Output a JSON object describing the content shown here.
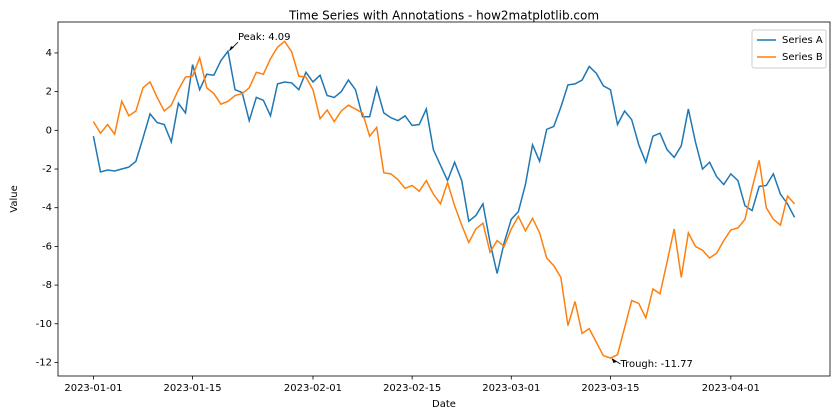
{
  "chart_data": {
    "type": "line",
    "title": "Time Series with Annotations - how2matplotlib.com",
    "x_label": "Date",
    "y_label": "Value",
    "x": [
      "2023-01-01",
      "2023-01-02",
      "2023-01-03",
      "2023-01-04",
      "2023-01-05",
      "2023-01-06",
      "2023-01-07",
      "2023-01-08",
      "2023-01-09",
      "2023-01-10",
      "2023-01-11",
      "2023-01-12",
      "2023-01-13",
      "2023-01-14",
      "2023-01-15",
      "2023-01-16",
      "2023-01-17",
      "2023-01-18",
      "2023-01-19",
      "2023-01-20",
      "2023-01-21",
      "2023-01-22",
      "2023-01-23",
      "2023-01-24",
      "2023-01-25",
      "2023-01-26",
      "2023-01-27",
      "2023-01-28",
      "2023-01-29",
      "2023-01-30",
      "2023-01-31",
      "2023-02-01",
      "2023-02-02",
      "2023-02-03",
      "2023-02-04",
      "2023-02-05",
      "2023-02-06",
      "2023-02-07",
      "2023-02-08",
      "2023-02-09",
      "2023-02-10",
      "2023-02-11",
      "2023-02-12",
      "2023-02-13",
      "2023-02-14",
      "2023-02-15",
      "2023-02-16",
      "2023-02-17",
      "2023-02-18",
      "2023-02-19",
      "2023-02-20",
      "2023-02-21",
      "2023-02-22",
      "2023-02-23",
      "2023-02-24",
      "2023-02-25",
      "2023-02-26",
      "2023-02-27",
      "2023-02-28",
      "2023-03-01",
      "2023-03-02",
      "2023-03-03",
      "2023-03-04",
      "2023-03-05",
      "2023-03-06",
      "2023-03-07",
      "2023-03-08",
      "2023-03-09",
      "2023-03-10",
      "2023-03-11",
      "2023-03-12",
      "2023-03-13",
      "2023-03-14",
      "2023-03-15",
      "2023-03-16",
      "2023-03-17",
      "2023-03-18",
      "2023-03-19",
      "2023-03-20",
      "2023-03-21",
      "2023-03-22",
      "2023-03-23",
      "2023-03-24",
      "2023-03-25",
      "2023-03-26",
      "2023-03-27",
      "2023-03-28",
      "2023-03-29",
      "2023-03-30",
      "2023-03-31",
      "2023-04-01",
      "2023-04-02",
      "2023-04-03",
      "2023-04-04",
      "2023-04-05",
      "2023-04-06",
      "2023-04-07",
      "2023-04-08",
      "2023-04-09",
      "2023-04-10"
    ],
    "series": [
      {
        "name": "Series A",
        "color": "#1f77b4",
        "values": [
          -0.3,
          -2.15,
          -2.05,
          -2.1,
          -2.0,
          -1.9,
          -1.6,
          -0.4,
          0.85,
          0.4,
          0.3,
          -0.6,
          1.4,
          0.9,
          3.4,
          2.1,
          2.9,
          2.85,
          3.6,
          4.09,
          2.1,
          1.95,
          0.5,
          1.7,
          1.55,
          0.75,
          2.4,
          2.5,
          2.45,
          2.1,
          3.0,
          2.5,
          2.85,
          1.8,
          1.7,
          2.0,
          2.6,
          2.1,
          0.7,
          0.7,
          2.2,
          0.9,
          0.65,
          0.5,
          0.75,
          0.25,
          0.3,
          1.1,
          -1.0,
          -1.8,
          -2.6,
          -1.65,
          -2.6,
          -4.7,
          -4.4,
          -3.8,
          -5.8,
          -7.4,
          -5.8,
          -4.6,
          -4.2,
          -2.8,
          -0.75,
          -1.6,
          0.05,
          0.2,
          1.2,
          2.35,
          2.4,
          2.6,
          3.3,
          2.95,
          2.3,
          2.1,
          0.3,
          1.0,
          0.55,
          -0.75,
          -1.65,
          -0.3,
          -0.15,
          -1.0,
          -1.4,
          -0.8,
          1.1,
          -0.6,
          -2.0,
          -1.65,
          -2.4,
          -2.8,
          -2.25,
          -2.6,
          -3.9,
          -4.15,
          -2.9,
          -2.85,
          -2.25,
          -3.3,
          -3.8,
          -4.5
        ]
      },
      {
        "name": "Series B",
        "color": "#ff7f0e",
        "values": [
          0.45,
          -0.15,
          0.3,
          -0.2,
          1.5,
          0.75,
          1.0,
          2.2,
          2.5,
          1.7,
          1.0,
          1.3,
          2.1,
          2.75,
          2.8,
          3.75,
          2.2,
          1.9,
          1.35,
          1.5,
          1.8,
          1.9,
          2.2,
          3.0,
          2.9,
          3.7,
          4.3,
          4.6,
          4.05,
          2.8,
          2.75,
          2.1,
          0.6,
          1.05,
          0.45,
          1.0,
          1.3,
          1.1,
          0.9,
          -0.3,
          0.15,
          -2.2,
          -2.25,
          -2.55,
          -3.0,
          -2.85,
          -3.15,
          -2.6,
          -3.3,
          -3.8,
          -2.7,
          -3.9,
          -4.9,
          -5.8,
          -5.1,
          -4.8,
          -6.3,
          -5.7,
          -6.0,
          -5.1,
          -4.45,
          -5.2,
          -4.55,
          -5.3,
          -6.6,
          -7.0,
          -7.6,
          -10.1,
          -8.85,
          -10.5,
          -10.25,
          -10.95,
          -11.65,
          -11.77,
          -11.6,
          -10.2,
          -8.8,
          -8.95,
          -9.7,
          -8.2,
          -8.45,
          -6.8,
          -5.1,
          -7.6,
          -5.3,
          -6.0,
          -6.2,
          -6.6,
          -6.35,
          -5.7,
          -5.15,
          -5.05,
          -4.6,
          -3.0,
          -1.55,
          -4.0,
          -4.6,
          -4.9,
          -3.4,
          -3.8
        ]
      }
    ],
    "annotations": [
      {
        "text": "Peak: 4.09",
        "x": "2023-01-20",
        "y": 4.09
      },
      {
        "text": "Trough: -11.77",
        "x": "2023-03-15",
        "y": -11.77
      }
    ],
    "xlim": [
      "2022-12-27",
      "2023-04-15"
    ],
    "xticks": [
      "2023-01-01",
      "2023-01-15",
      "2023-02-01",
      "2023-02-15",
      "2023-03-01",
      "2023-03-15",
      "2023-04-01"
    ],
    "ylim": [
      -12.7,
      5.6
    ],
    "yticks": [
      -12,
      -10,
      -8,
      -6,
      -4,
      -2,
      0,
      2,
      4
    ],
    "grid": false,
    "legend_position": "upper-right"
  }
}
